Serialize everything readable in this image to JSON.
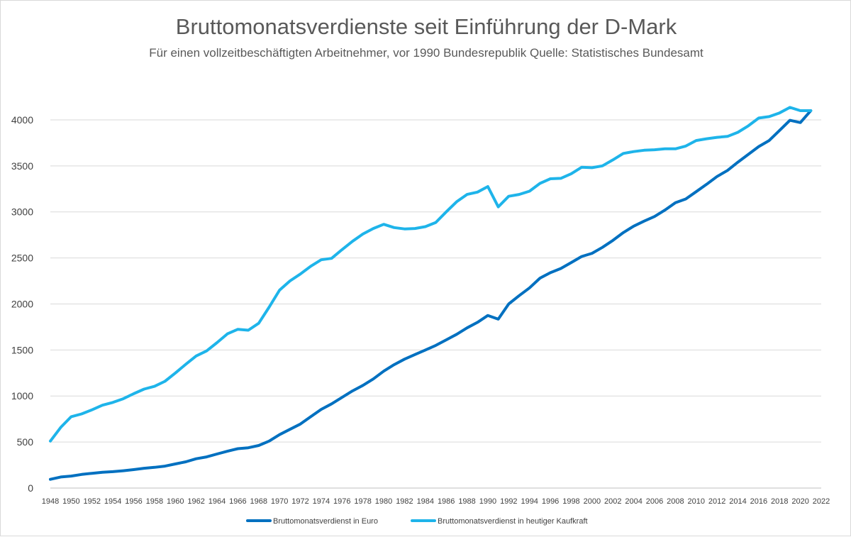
{
  "chart_data": {
    "type": "line",
    "title": "Bruttomonatsverdienste seit Einführung der D-Mark",
    "subtitle": "Für einen vollzeitbeschäftigten Arbeitnehmer, vor 1990 Bundesrepublik Quelle: Statistisches Bundesamt",
    "xlabel": "",
    "ylabel": "",
    "ylim": [
      0,
      4200
    ],
    "xlim": [
      1948,
      2022
    ],
    "yticks": [
      0,
      500,
      1000,
      1500,
      2000,
      2500,
      3000,
      3500,
      4000
    ],
    "xticks": [
      1948,
      1950,
      1952,
      1954,
      1956,
      1958,
      1960,
      1962,
      1964,
      1966,
      1968,
      1970,
      1972,
      1974,
      1976,
      1978,
      1980,
      1982,
      1984,
      1986,
      1988,
      1990,
      1992,
      1994,
      1996,
      1998,
      2000,
      2002,
      2004,
      2006,
      2008,
      2010,
      2012,
      2014,
      2016,
      2018,
      2020,
      2022
    ],
    "legend_position": "bottom",
    "grid": true,
    "x": [
      1948,
      1949,
      1950,
      1951,
      1952,
      1953,
      1954,
      1955,
      1956,
      1957,
      1958,
      1959,
      1960,
      1961,
      1962,
      1963,
      1964,
      1965,
      1966,
      1967,
      1968,
      1969,
      1970,
      1971,
      1972,
      1973,
      1974,
      1975,
      1976,
      1977,
      1978,
      1979,
      1980,
      1981,
      1982,
      1983,
      1984,
      1985,
      1986,
      1987,
      1988,
      1989,
      1990,
      1991,
      1992,
      1993,
      1994,
      1995,
      1996,
      1997,
      1998,
      1999,
      2000,
      2001,
      2002,
      2003,
      2004,
      2005,
      2006,
      2007,
      2008,
      2009,
      2010,
      2011,
      2012,
      2013,
      2014,
      2015,
      2016,
      2017,
      2018,
      2019,
      2020,
      2021
    ],
    "series": [
      {
        "name": "Bruttomonatsverdienst in Euro",
        "color": "#0070C0",
        "values": [
          95,
          120,
          130,
          148,
          160,
          172,
          178,
          188,
          200,
          215,
          225,
          238,
          262,
          285,
          318,
          338,
          370,
          400,
          428,
          438,
          462,
          510,
          580,
          638,
          695,
          775,
          855,
          915,
          985,
          1055,
          1115,
          1185,
          1270,
          1340,
          1400,
          1450,
          1500,
          1550,
          1610,
          1670,
          1740,
          1800,
          1875,
          1835,
          2000,
          2090,
          2175,
          2280,
          2340,
          2385,
          2450,
          2515,
          2550,
          2615,
          2690,
          2775,
          2845,
          2900,
          2950,
          3020,
          3100,
          3140,
          3220,
          3300,
          3385,
          3450,
          3540,
          3625,
          3710,
          3775,
          3885,
          3995,
          3970,
          4100
        ]
      },
      {
        "name": "Bruttomonatsverdienst in heutiger Kaufkraft",
        "color": "#1EB4EA",
        "values": [
          510,
          660,
          775,
          805,
          850,
          900,
          930,
          970,
          1025,
          1075,
          1105,
          1160,
          1250,
          1345,
          1435,
          1490,
          1580,
          1675,
          1725,
          1715,
          1790,
          1965,
          2150,
          2250,
          2325,
          2410,
          2480,
          2495,
          2590,
          2680,
          2760,
          2820,
          2865,
          2830,
          2815,
          2820,
          2840,
          2885,
          3000,
          3110,
          3190,
          3215,
          3275,
          3055,
          3170,
          3190,
          3225,
          3310,
          3360,
          3365,
          3415,
          3485,
          3480,
          3500,
          3565,
          3635,
          3655,
          3670,
          3675,
          3685,
          3685,
          3715,
          3775,
          3795,
          3810,
          3820,
          3865,
          3935,
          4020,
          4035,
          4075,
          4135,
          4100,
          4100
        ]
      }
    ]
  }
}
